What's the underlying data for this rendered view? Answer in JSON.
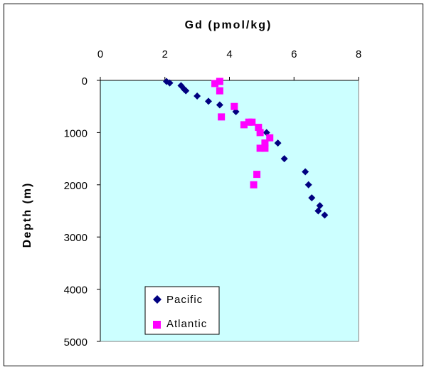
{
  "chart_data": {
    "type": "scatter",
    "xlabel": "Gd (pmol/kg)",
    "ylabel": "Depth (m)",
    "xlim": [
      0,
      8
    ],
    "ylim": [
      0,
      5000
    ],
    "x_ticks": [
      "0",
      "2",
      "4",
      "6",
      "8"
    ],
    "y_ticks": [
      "0",
      "1000",
      "2000",
      "3000",
      "4000",
      "5000"
    ],
    "y_inverted": true,
    "x_axis_position": "top",
    "grid": false,
    "plot_background": "#ccffff",
    "legend_position": "bottom-left",
    "series": [
      {
        "name": "Pacific",
        "marker": "diamond",
        "color": "#000080",
        "points": [
          [
            2.05,
            20
          ],
          [
            2.15,
            50
          ],
          [
            2.5,
            100
          ],
          [
            2.6,
            170
          ],
          [
            2.65,
            200
          ],
          [
            3.0,
            300
          ],
          [
            3.35,
            400
          ],
          [
            3.7,
            470
          ],
          [
            4.2,
            600
          ],
          [
            5.15,
            1000
          ],
          [
            5.5,
            1200
          ],
          [
            5.7,
            1500
          ],
          [
            6.35,
            1750
          ],
          [
            6.45,
            2000
          ],
          [
            6.55,
            2250
          ],
          [
            6.8,
            2400
          ],
          [
            6.75,
            2500
          ],
          [
            6.95,
            2580
          ]
        ]
      },
      {
        "name": "Atlantic",
        "marker": "square",
        "color": "#ff00ff",
        "points": [
          [
            3.7,
            20
          ],
          [
            3.55,
            60
          ],
          [
            3.7,
            200
          ],
          [
            4.15,
            500
          ],
          [
            3.75,
            700
          ],
          [
            4.6,
            800
          ],
          [
            4.7,
            800
          ],
          [
            4.45,
            850
          ],
          [
            4.9,
            900
          ],
          [
            4.95,
            1000
          ],
          [
            5.25,
            1100
          ],
          [
            5.1,
            1200
          ],
          [
            4.95,
            1300
          ],
          [
            5.1,
            1300
          ],
          [
            4.85,
            1800
          ],
          [
            4.75,
            2000
          ]
        ]
      }
    ]
  }
}
